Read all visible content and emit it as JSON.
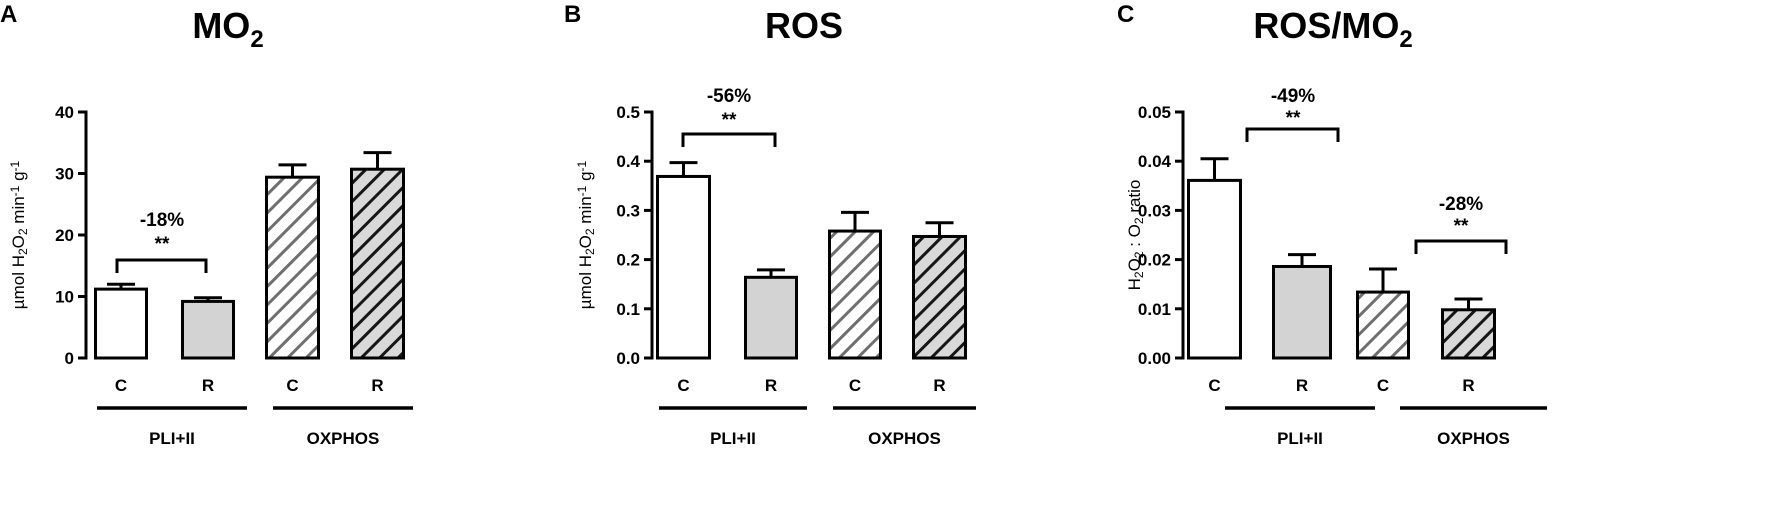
{
  "figure": {
    "panels": [
      {
        "letter": "A",
        "title_main": "MO",
        "title_sub": "2",
        "title_tail": "",
        "ylabel_parts": [
          {
            "t": "µmol H",
            "s": ""
          },
          {
            "t": "2",
            "s": "sub"
          },
          {
            "t": "O",
            "s": ""
          },
          {
            "t": "2",
            "s": "sub"
          },
          {
            "t": " min",
            "s": ""
          },
          {
            "t": "-1",
            "s": "sup"
          },
          {
            "t": " g",
            "s": ""
          },
          {
            "t": "-1",
            "s": "sup"
          }
        ],
        "ytick_labels": [
          "0",
          "10",
          "20",
          "30",
          "40"
        ],
        "x_labels": [
          "C",
          "R",
          "C",
          "R"
        ],
        "group_labels": [
          "PLI+II",
          "OXPHOS"
        ],
        "annotations": [
          {
            "pct": "-18%",
            "stars": "**"
          }
        ]
      },
      {
        "letter": "B",
        "title_main": "ROS",
        "title_sub": "",
        "title_tail": "",
        "ylabel_parts": [
          {
            "t": "µmol H",
            "s": ""
          },
          {
            "t": "2",
            "s": "sub"
          },
          {
            "t": "O",
            "s": ""
          },
          {
            "t": "2",
            "s": "sub"
          },
          {
            "t": " min",
            "s": ""
          },
          {
            "t": "-1",
            "s": "sup"
          },
          {
            "t": " g",
            "s": ""
          },
          {
            "t": "-1",
            "s": "sup"
          }
        ],
        "ytick_labels": [
          "0.0",
          "0.1",
          "0.2",
          "0.3",
          "0.4",
          "0.5"
        ],
        "x_labels": [
          "C",
          "R",
          "C",
          "R"
        ],
        "group_labels": [
          "PLI+II",
          "OXPHOS"
        ],
        "annotations": [
          {
            "pct": "-56%",
            "stars": "**"
          }
        ]
      },
      {
        "letter": "C",
        "title_main": "ROS/MO",
        "title_sub": "2",
        "title_tail": "",
        "ylabel_parts": [
          {
            "t": "H",
            "s": ""
          },
          {
            "t": "2",
            "s": "sub"
          },
          {
            "t": "O",
            "s": ""
          },
          {
            "t": "2",
            "s": "sub"
          },
          {
            "t": " : O",
            "s": ""
          },
          {
            "t": "2",
            "s": "sub"
          },
          {
            "t": " ratio",
            "s": ""
          }
        ],
        "ytick_labels": [
          "0.00",
          "0.01",
          "0.02",
          "0.03",
          "0.04",
          "0.05"
        ],
        "x_labels": [
          "C",
          "R",
          "C",
          "R"
        ],
        "group_labels": [
          "PLI+II",
          "OXPHOS"
        ],
        "annotations": [
          {
            "pct": "-49%",
            "stars": "**"
          },
          {
            "pct": "-28%",
            "stars": "**"
          }
        ]
      }
    ]
  },
  "chart_data": [
    {
      "type": "bar",
      "title": "MO2",
      "ylabel": "µmol H2O2 min-1 g-1",
      "ylim": [
        0,
        40
      ],
      "yticks": [
        0,
        10,
        20,
        30,
        40
      ],
      "categories": [
        "C",
        "R",
        "C",
        "R"
      ],
      "groups": [
        "PLI+II",
        "PLI+II",
        "OXPHOS",
        "OXPHOS"
      ],
      "values": [
        11.2,
        9.2,
        29.4,
        30.7
      ],
      "errors": [
        0.8,
        0.6,
        2.0,
        2.7
      ],
      "fills": [
        "white",
        "gray",
        "hatch-light",
        "hatch-dark"
      ],
      "significance": [
        {
          "between": [
            0,
            1
          ],
          "label": "-18%",
          "stars": "**"
        }
      ]
    },
    {
      "type": "bar",
      "title": "ROS",
      "ylabel": "µmol H2O2 min-1 g-1",
      "ylim": [
        0,
        0.5
      ],
      "yticks": [
        0.0,
        0.1,
        0.2,
        0.3,
        0.4,
        0.5
      ],
      "categories": [
        "C",
        "R",
        "C",
        "R"
      ],
      "groups": [
        "PLI+II",
        "PLI+II",
        "OXPHOS",
        "OXPHOS"
      ],
      "values": [
        0.369,
        0.164,
        0.258,
        0.247
      ],
      "errors": [
        0.028,
        0.015,
        0.038,
        0.028
      ],
      "fills": [
        "white",
        "gray",
        "hatch-light",
        "hatch-dark"
      ],
      "significance": [
        {
          "between": [
            0,
            1
          ],
          "label": "-56%",
          "stars": "**"
        }
      ]
    },
    {
      "type": "bar",
      "title": "ROS/MO2",
      "ylabel": "H2O2 : O2 ratio",
      "ylim": [
        0,
        0.05
      ],
      "yticks": [
        0.0,
        0.01,
        0.02,
        0.03,
        0.04,
        0.05
      ],
      "categories": [
        "C",
        "R",
        "C",
        "R"
      ],
      "groups": [
        "PLI+II",
        "PLI+II",
        "OXPHOS",
        "OXPHOS"
      ],
      "values": [
        0.0361,
        0.0186,
        0.0134,
        0.0098
      ],
      "errors": [
        0.0044,
        0.0024,
        0.0047,
        0.0022
      ],
      "fills": [
        "white",
        "gray",
        "hatch-light",
        "hatch-dark"
      ],
      "significance": [
        {
          "between": [
            0,
            1
          ],
          "label": "-49%",
          "stars": "**"
        },
        {
          "between": [
            2,
            3
          ],
          "label": "-28%",
          "stars": "**"
        }
      ]
    }
  ]
}
